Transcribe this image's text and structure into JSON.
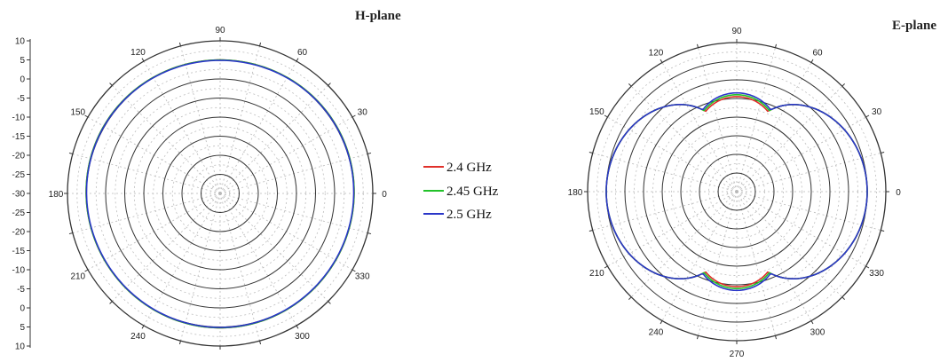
{
  "chart_data": [
    {
      "type": "polar-line",
      "title": "H-plane",
      "unit": "dB",
      "rlim": [
        -30,
        10
      ],
      "radial_ticks": [
        "10",
        "5",
        "0",
        "-5",
        "-10",
        "-15",
        "-20",
        "-25",
        "-30",
        "-25",
        "-20",
        "-15",
        "-10",
        "-5",
        "0",
        "5",
        "10"
      ],
      "angle_ticks": [
        "0",
        "30",
        "60",
        "90",
        "120",
        "150",
        "180",
        "210",
        "240",
        "300",
        "330"
      ],
      "grid": true,
      "series": [
        {
          "name": "2.4 GHz",
          "color": "#e0302a",
          "model": "omni",
          "peak_db": 5.1
        },
        {
          "name": "2.45 GHz",
          "color": "#22c22a",
          "model": "omni",
          "peak_db": 5.1
        },
        {
          "name": "2.5 GHz",
          "color": "#2a36c8",
          "model": "omni",
          "peak_db": 5.0
        }
      ]
    },
    {
      "type": "polar-line",
      "title": "E-plane",
      "unit": "dB",
      "rlim": [
        -30,
        10
      ],
      "angle_ticks": [
        "0",
        "30",
        "60",
        "90",
        "120",
        "150",
        "180",
        "210",
        "240",
        "270",
        "300",
        "330"
      ],
      "grid": true,
      "series": [
        {
          "name": "2.4 GHz",
          "color": "#e0302a",
          "model": "figure8",
          "peak_db": 5.0,
          "minor_lobe_db": -4.5
        },
        {
          "name": "2.45 GHz",
          "color": "#22c22a",
          "model": "figure8",
          "peak_db": 5.0,
          "minor_lobe_db": -4.0
        },
        {
          "name": "2.5 GHz",
          "color": "#2a36c8",
          "model": "figure8",
          "peak_db": 5.0,
          "minor_lobe_db": -3.5
        }
      ]
    }
  ],
  "legend": {
    "entries": [
      {
        "label": "2.4 GHz",
        "color": "#e0302a"
      },
      {
        "label": "2.45 GHz",
        "color": "#22c22a"
      },
      {
        "label": "2.5 GHz",
        "color": "#2a36c8"
      }
    ]
  }
}
